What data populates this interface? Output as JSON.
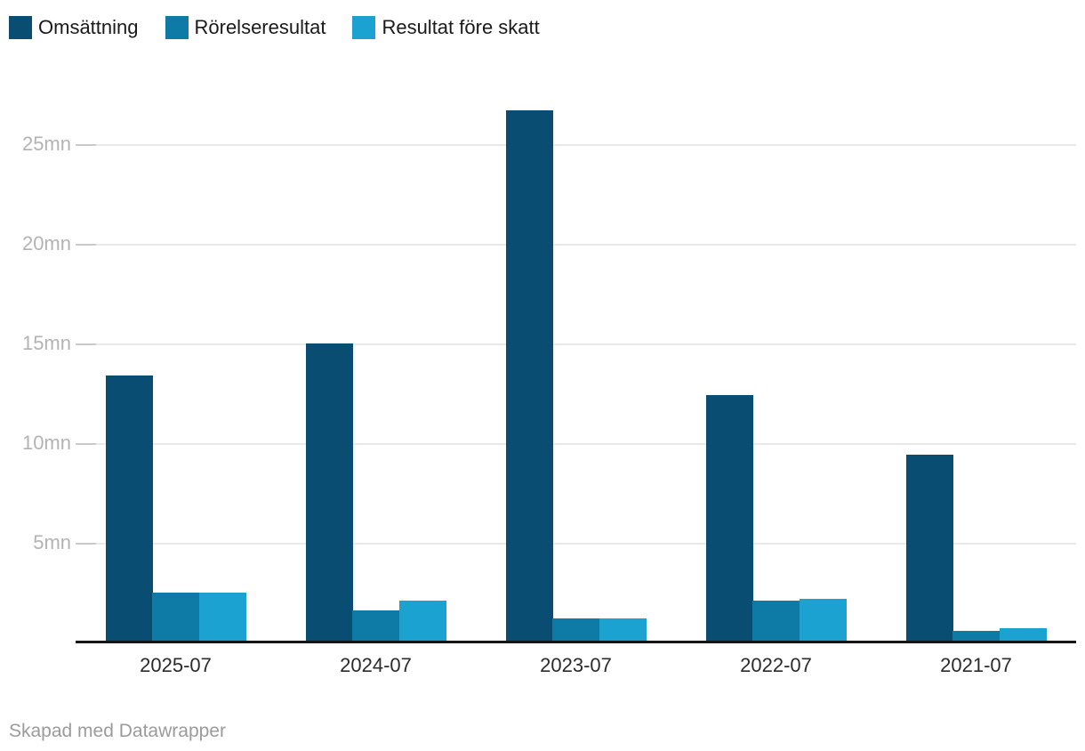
{
  "legend": {
    "items": [
      {
        "label": "Omsättning",
        "color": "#0A4D73"
      },
      {
        "label": "Rörelseresultat",
        "color": "#0E7BA7"
      },
      {
        "label": "Resultat före skatt",
        "color": "#1CA2D1"
      }
    ]
  },
  "footer": {
    "credit": "Skapad med Datawrapper"
  },
  "colors": {
    "series_dark": "#0A4D73",
    "series_medium": "#0E7BA7",
    "series_light": "#1CA2D1",
    "gridline": "#e9e9e9",
    "tick_dash": "#c9c9c9",
    "axis_baseline": "#141414",
    "ytick_text": "#b3b3b3",
    "xtick_text": "#2b2b2b",
    "footer_text": "#9b9b9b"
  },
  "chart_data": {
    "type": "bar",
    "title": "",
    "xlabel": "",
    "ylabel": "",
    "unit": "mn",
    "categories": [
      "2025-07",
      "2024-07",
      "2023-07",
      "2022-07",
      "2021-07"
    ],
    "series": [
      {
        "name": "Omsättning",
        "color": "#0A4D73",
        "values": [
          13.4,
          15.0,
          26.7,
          12.4,
          9.4
        ]
      },
      {
        "name": "Rörelseresultat",
        "color": "#0E7BA7",
        "values": [
          2.5,
          1.6,
          1.2,
          2.1,
          0.6
        ]
      },
      {
        "name": "Resultat före skatt",
        "color": "#1CA2D1",
        "values": [
          2.5,
          2.1,
          1.2,
          2.2,
          0.7
        ]
      }
    ],
    "ylim": [
      0,
      28.2
    ],
    "yticks": [
      {
        "value": 5,
        "label": "5mn"
      },
      {
        "value": 10,
        "label": "10mn"
      },
      {
        "value": 15,
        "label": "15mn"
      },
      {
        "value": 20,
        "label": "20mn"
      },
      {
        "value": 25,
        "label": "25mn"
      }
    ],
    "grid": true,
    "legend_position": "top"
  }
}
